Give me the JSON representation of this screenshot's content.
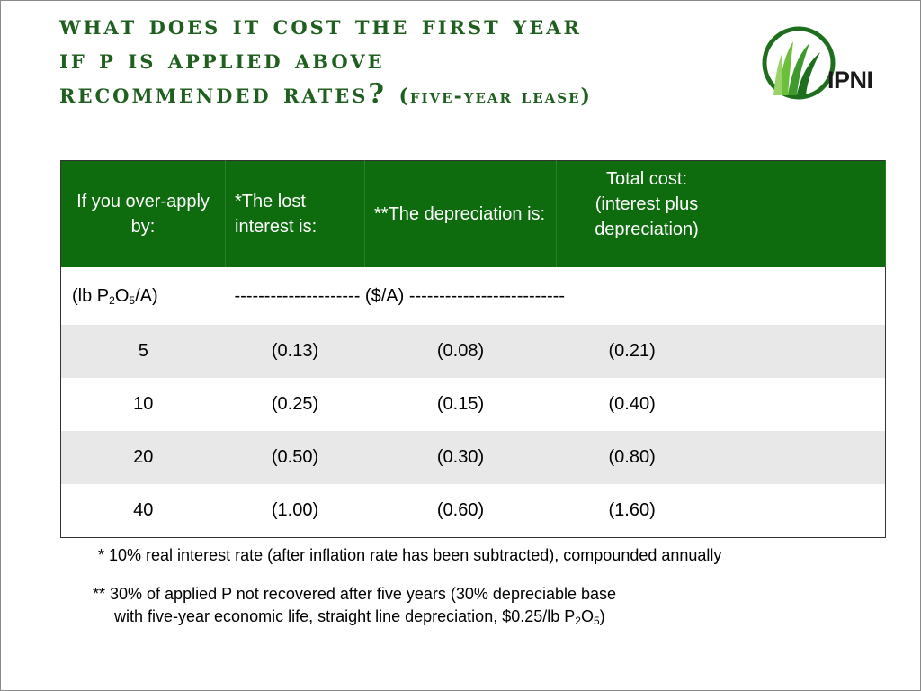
{
  "slide": {
    "title_line1": "What does it cost the first year",
    "title_line2": "if P is applied above",
    "title_line3": "recommended rates?",
    "title_suffix": "(five-year lease)",
    "logo_text": "IPNI"
  },
  "table": {
    "headers": {
      "col1": "If you over-apply by:",
      "col2": "*The lost interest is:",
      "col3": "**The depreciation is:",
      "col4_line1": "Total cost:",
      "col4_line2": "(interest plus",
      "col4_line3": "depreciation)"
    },
    "units_row": {
      "unit_prefix": "(lb P",
      "unit_sub1": "2",
      "unit_mid": "O",
      "unit_sub2": "5",
      "unit_suffix": "/A)",
      "dollar_label": "--------------------- ($/A) --------------------------"
    },
    "rows": [
      {
        "over": "5",
        "interest": "(0.13)",
        "depreciation": "(0.08)",
        "total": "(0.21)"
      },
      {
        "over": "10",
        "interest": "(0.25)",
        "depreciation": "(0.15)",
        "total": "(0.40)"
      },
      {
        "over": "20",
        "interest": "(0.50)",
        "depreciation": "(0.30)",
        "total": "(0.80)"
      },
      {
        "over": "40",
        "interest": "(1.00)",
        "depreciation": "(0.60)",
        "total": "(1.60)"
      }
    ]
  },
  "notes": {
    "note1": "* 10% real interest rate (after inflation rate has been subtracted), compounded annually",
    "note2_line1": "** 30% of applied P not recovered after five years (30% depreciable base",
    "note2_line2_prefix": "with five-year economic life, straight line depreciation, $0.25/lb P",
    "note2_sub1": "2",
    "note2_mid": "O",
    "note2_sub2": "5",
    "note2_suffix": ")"
  },
  "colors": {
    "title_green": "#1f5f1f",
    "header_green": "#0e6b0e",
    "stripe_gray": "#e8e8e8"
  }
}
